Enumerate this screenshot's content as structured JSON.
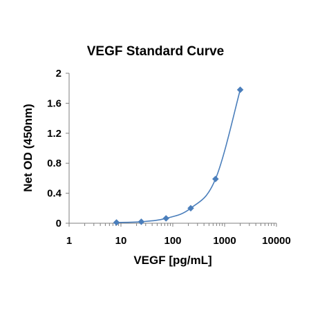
{
  "chart_data": {
    "type": "scatter",
    "title": "VEGF Standard Curve",
    "xlabel": "VEGF [pg/mL]",
    "ylabel": "Net OD (450nm)",
    "x_scale": "log",
    "xlim": [
      1,
      10000
    ],
    "ylim": [
      0,
      2
    ],
    "x_ticks": [
      "1",
      "10",
      "100",
      "1000",
      "10000"
    ],
    "y_ticks": [
      "0",
      "0.4",
      "0.8",
      "1.2",
      "1.6",
      "2"
    ],
    "grid": false,
    "legend": "none",
    "series": [
      {
        "marker": "diamond",
        "line": "smooth",
        "color": "#4a7ebb",
        "points": [
          {
            "x": 8.2,
            "y": 0.01
          },
          {
            "x": 24.7,
            "y": 0.02
          },
          {
            "x": 74.1,
            "y": 0.065
          },
          {
            "x": 222,
            "y": 0.2
          },
          {
            "x": 667,
            "y": 0.59
          },
          {
            "x": 2000,
            "y": 1.78
          }
        ]
      }
    ]
  }
}
